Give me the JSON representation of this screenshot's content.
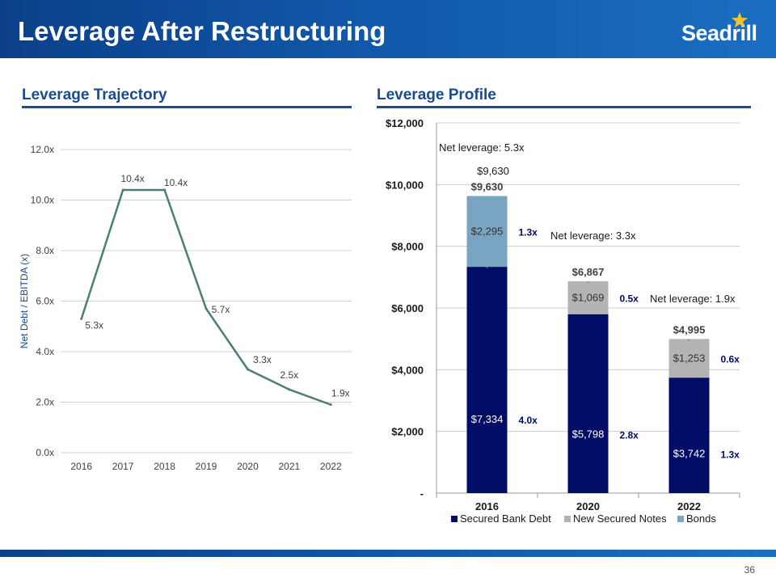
{
  "header": {
    "title": "Leverage After Restructuring",
    "logo_text": "Seadrill"
  },
  "page_number": "36",
  "colors": {
    "line": "#4c7d7a",
    "secured": "#000c66",
    "notes": "#b4b4b4",
    "bonds": "#7aa5c2",
    "accent": "#1a4b8c"
  },
  "chart_data": [
    {
      "type": "line",
      "title": "Leverage Trajectory",
      "ylabel": "Net Debt / EBITDA (x)",
      "x": [
        "2016",
        "2017",
        "2018",
        "2019",
        "2020",
        "2021",
        "2022"
      ],
      "y": [
        5.3,
        10.4,
        10.4,
        5.7,
        3.3,
        2.5,
        1.9
      ],
      "data_labels": [
        "5.3x",
        "10.4x",
        "10.4x",
        "5.7x",
        "3.3x",
        "2.5x",
        "1.9x"
      ],
      "ylim": [
        0,
        12
      ],
      "yticks": [
        0,
        2,
        4,
        6,
        8,
        10,
        12
      ],
      "ytick_labels": [
        "0.0x",
        "2.0x",
        "4.0x",
        "6.0x",
        "8.0x",
        "10.0x",
        "12.0x"
      ],
      "grid": true
    },
    {
      "type": "bar",
      "stacked": true,
      "title": "Leverage Profile",
      "categories": [
        "2016",
        "2020",
        "2022"
      ],
      "series": [
        {
          "name": "Secured Bank Debt",
          "values": [
            7334,
            5798,
            3742
          ],
          "value_labels": [
            "$7,334",
            "$5,798",
            "$3,742"
          ],
          "leverage_labels": [
            "4.0x",
            "2.8x",
            "1.3x"
          ]
        },
        {
          "name": "New Secured Notes",
          "values": [
            0,
            1069,
            1253
          ],
          "value_labels": [
            "-",
            "$1,069",
            "$1,253"
          ],
          "leverage_labels": [
            "",
            "0.5x",
            "0.6x"
          ]
        },
        {
          "name": "Bonds",
          "values": [
            2295,
            0,
            0
          ],
          "value_labels": [
            "$2,295",
            "-",
            "-"
          ],
          "leverage_labels": [
            "1.3x",
            "",
            ""
          ]
        }
      ],
      "totals": [
        9630,
        6867,
        4995
      ],
      "total_labels": [
        "$9,630",
        "$6,867",
        "$4,995"
      ],
      "annotations": [
        {
          "text": "Net leverage: 5.3x",
          "category": "2016"
        },
        {
          "text": "$9,630",
          "category": "2016"
        },
        {
          "text": "Net leverage: 3.3x",
          "category": "2020"
        },
        {
          "text": "Net leverage: 1.9x",
          "category": "2022"
        }
      ],
      "ylim": [
        0,
        12000
      ],
      "yticks": [
        0,
        2000,
        4000,
        6000,
        8000,
        10000,
        12000
      ],
      "ytick_labels": [
        "-",
        "$2,000",
        "$4,000",
        "$6,000",
        "$8,000",
        "$10,000",
        "$12,000"
      ],
      "legend_position": "bottom",
      "grid": true
    }
  ]
}
